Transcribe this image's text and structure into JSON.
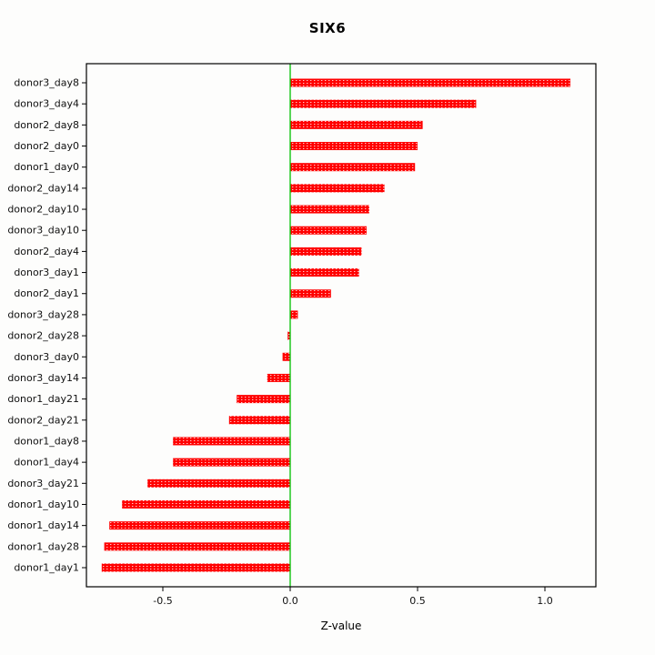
{
  "chart_data": {
    "type": "bar",
    "orientation": "horizontal",
    "title": "SIX6",
    "xlabel": "Z-value",
    "ylabel": "",
    "xlim": [
      -0.8,
      1.2
    ],
    "x_ticks": [
      -0.5,
      0.0,
      0.5,
      1.0
    ],
    "x_tick_labels": [
      "-0.5",
      "0.0",
      "0.5",
      "1.0"
    ],
    "grid": false,
    "legend": "none",
    "bar_color": "#ff0000",
    "bar_texture_color": "#ffffff",
    "zero_line_color": "#00c000",
    "axis_color": "#000000",
    "categories": [
      "donor3_day8",
      "donor3_day4",
      "donor2_day8",
      "donor2_day0",
      "donor1_day0",
      "donor2_day14",
      "donor2_day10",
      "donor3_day10",
      "donor2_day4",
      "donor3_day1",
      "donor2_day1",
      "donor3_day28",
      "donor2_day28",
      "donor3_day0",
      "donor3_day14",
      "donor1_day21",
      "donor2_day21",
      "donor1_day8",
      "donor1_day4",
      "donor3_day21",
      "donor1_day10",
      "donor1_day14",
      "donor1_day28",
      "donor1_day1"
    ],
    "values": [
      1.1,
      0.73,
      0.52,
      0.5,
      0.49,
      0.37,
      0.31,
      0.3,
      0.28,
      0.27,
      0.16,
      0.03,
      -0.01,
      -0.03,
      -0.09,
      -0.21,
      -0.24,
      -0.46,
      -0.46,
      -0.56,
      -0.66,
      -0.71,
      -0.73,
      -0.74
    ]
  }
}
